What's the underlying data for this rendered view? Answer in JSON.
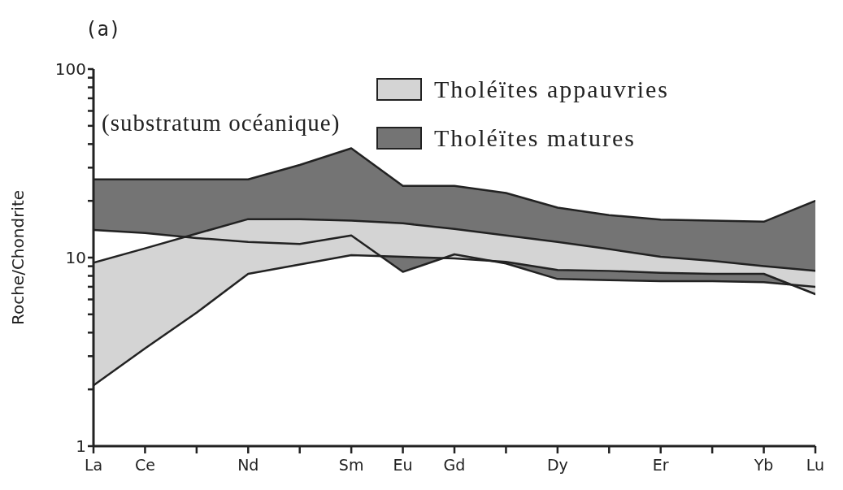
{
  "chart_data": {
    "type": "area",
    "title": "(a)",
    "ylabel": "Roche/Chondrite",
    "annotations": [
      "(substratum océanique)"
    ],
    "categories": [
      "La",
      "Ce",
      null,
      "Nd",
      null,
      "Sm",
      "Eu",
      "Gd",
      null,
      "Dy",
      null,
      "Er",
      null,
      "Yb",
      "Lu"
    ],
    "series": [
      {
        "name": "Tholéïtes appauvries",
        "color": "#d4d4d4",
        "values": [
          null,
          null,
          null,
          null,
          null,
          null,
          null,
          null,
          null,
          null,
          null,
          null,
          null,
          null,
          null
        ],
        "lower": [
          2.1,
          3.3,
          5.1,
          8.2,
          9.2,
          10.3,
          10.1,
          9.9,
          9.5,
          8.6,
          8.5,
          8.3,
          8.2,
          8.2,
          6.4
        ],
        "upper": [
          9.4,
          11.2,
          13.4,
          16,
          16,
          15.7,
          15.2,
          14.2,
          13.1,
          12.1,
          11.1,
          10.1,
          9.6,
          9.0,
          8.5
        ]
      },
      {
        "name": "Tholéïtes matures",
        "color": "#747474",
        "values": [
          null,
          null,
          null,
          null,
          null,
          null,
          null,
          null,
          null,
          null,
          null,
          null,
          null,
          null,
          null
        ],
        "lower": [
          14,
          13.5,
          12.7,
          12.1,
          11.8,
          13.1,
          8.4,
          10.4,
          9.3,
          7.7,
          7.6,
          7.5,
          7.5,
          7.4,
          7.0
        ],
        "upper": [
          26,
          26,
          26,
          26,
          31,
          38,
          24,
          24,
          22,
          18.4,
          16.8,
          15.9,
          15.7,
          15.5,
          20
        ]
      },
      {
        "type": "line",
        "color": "#222222",
        "values": [
          2.1,
          3.3,
          5.1,
          8.2,
          9.2,
          10.3,
          10.1,
          9.9,
          9.5,
          8.6,
          8.5,
          8.3,
          8.2,
          8.2,
          6.4
        ]
      },
      {
        "type": "line",
        "color": "#222222",
        "values": [
          9.4,
          11.2,
          13.4,
          16,
          16,
          15.7,
          15.2,
          14.2,
          13.1,
          12.1,
          11.1,
          10.1,
          9.6,
          9.0,
          8.5
        ]
      },
      {
        "type": "line",
        "color": "#222222",
        "values": [
          14,
          13.5,
          12.7,
          12.1,
          11.8,
          13.1,
          8.4,
          10.4,
          9.3,
          7.7,
          7.6,
          7.5,
          7.5,
          7.4,
          7.0
        ]
      },
      {
        "type": "line",
        "color": "#222222",
        "values": [
          26,
          26,
          26,
          26,
          31,
          38,
          24,
          24,
          22,
          18.4,
          16.8,
          15.9,
          15.7,
          15.5,
          20
        ]
      }
    ],
    "log": true,
    "ylim": [
      1,
      100
    ],
    "yticks": [
      1,
      {
        "value": 2,
        "label": null
      },
      {
        "value": 3,
        "label": null
      },
      {
        "value": 4,
        "label": null
      },
      {
        "value": 5,
        "label": null
      },
      {
        "value": 6,
        "label": null
      },
      {
        "value": 7,
        "label": null
      },
      {
        "value": 8,
        "label": null
      },
      {
        "value": 9,
        "label": null
      },
      10,
      {
        "value": 20,
        "label": null
      },
      {
        "value": 30,
        "label": null
      },
      {
        "value": 40,
        "label": null
      },
      {
        "value": 50,
        "label": null
      },
      {
        "value": 60,
        "label": null
      },
      {
        "value": 70,
        "label": null
      },
      {
        "value": 80,
        "label": null
      },
      {
        "value": 90,
        "label": null
      },
      100
    ],
    "legend": "top right",
    "marker": "none"
  }
}
